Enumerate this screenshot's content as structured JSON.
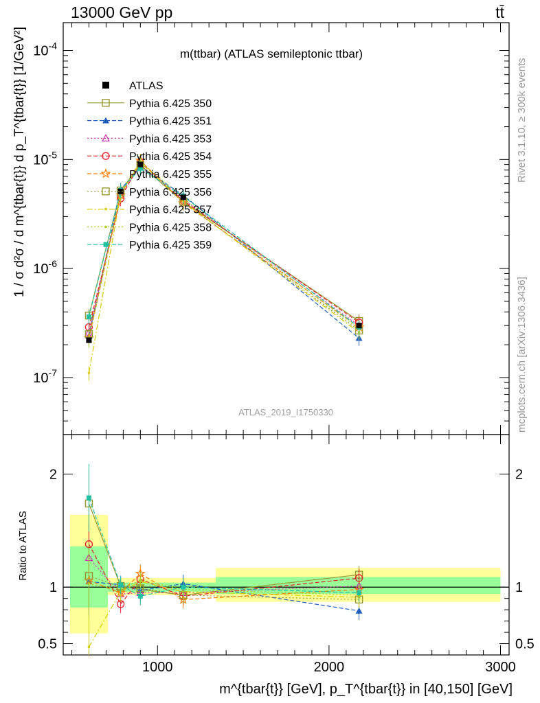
{
  "header": {
    "left": "13000 GeV pp",
    "right": "tt̄"
  },
  "side_labels": {
    "rivet": "Rivet 3.1.10, ≥ 300k events",
    "mcplots": "mcplots.cern.ch [arXiv:1306.3436]"
  },
  "colors": {
    "data": "#000000",
    "band_yellow": "#ffff99",
    "band_green": "#99ff99",
    "ratio_line": "#000000"
  },
  "chart_data": [
    {
      "type": "line",
      "panel": "main",
      "title": "m(ttbar) (ATLAS semileptonic ttbar)",
      "watermark": "ATLAS_2019_I1750330",
      "ylabel": "1 / σ d²σ / d m^{tbar{t}} d p_T^{tbar{t}} [1/GeV²]",
      "yscale": "log",
      "ylim": [
        3e-08,
        0.00018
      ],
      "xlim": [
        450,
        3050
      ],
      "ytick_labels": [
        "10^{-7}",
        "10^{-6}",
        "10^{-5}",
        "10^{-4}"
      ],
      "legend_position": "top-left",
      "x": [
        600,
        785,
        900,
        1150,
        2175
      ],
      "data_series": {
        "name": "ATLAS",
        "values": [
          2.2e-07,
          5.1e-06,
          9e-06,
          4.5e-06,
          3e-07
        ]
      },
      "series": [
        {
          "name": "Pythia 6.425 350",
          "color": "#999933",
          "values": [
            3.7e-07,
            5.2e-06,
            8.9e-06,
            4.1e-06,
            3.3e-07
          ]
        },
        {
          "name": "Pythia 6.425 351",
          "color": "#1f5fbf",
          "values": [
            2.4e-07,
            5.3e-06,
            8.6e-06,
            4.7e-06,
            2.3e-07
          ]
        },
        {
          "name": "Pythia 6.425 353",
          "color": "#cc33aa",
          "values": [
            2.6e-07,
            4.7e-06,
            8.7e-06,
            4.3e-06,
            3e-07
          ]
        },
        {
          "name": "Pythia 6.425 354",
          "color": "#e8202a",
          "values": [
            2.9e-07,
            4.4e-06,
            9.4e-06,
            4.2e-06,
            3.2e-07
          ]
        },
        {
          "name": "Pythia 6.425 355",
          "color": "#ff7f00",
          "values": [
            2.3e-07,
            4.7e-06,
            9.8e-06,
            4e-06,
            2.9e-07
          ]
        },
        {
          "name": "Pythia 6.425 356",
          "color": "#999933",
          "values": [
            2.5e-07,
            5e-06,
            8.9e-06,
            4.1e-06,
            2.7e-07
          ]
        },
        {
          "name": "Pythia 6.425 357",
          "color": "#d4cc00",
          "values": [
            1.1e-07,
            4.8e-06,
            9.4e-06,
            4.1e-06,
            2.6e-07
          ]
        },
        {
          "name": "Pythia 6.425 358",
          "color": "#aacc22",
          "values": [
            2.2e-07,
            5e-06,
            9.6e-06,
            4.4e-06,
            2.8e-07
          ]
        },
        {
          "name": "Pythia 6.425 359",
          "color": "#20c0a0",
          "values": [
            3.6e-07,
            5.2e-06,
            8.3e-06,
            4.6e-06,
            2.9e-07
          ]
        }
      ]
    },
    {
      "type": "line",
      "panel": "ratio",
      "ylabel": "Ratio to ATLAS",
      "ylim": [
        0.4,
        2.35
      ],
      "xlim": [
        450,
        3050
      ],
      "ytick_labels": [
        "0.5",
        "1",
        "2"
      ],
      "xtick_labels": [
        "1000",
        "2000",
        "3000"
      ],
      "xlabel": "m^{tbar{t}} [GeV], p_T^{tbar{t}} in [40,150] [GeV]",
      "bands": [
        {
          "x0": 490,
          "x1": 710,
          "yellow": [
            0.59,
            1.64
          ],
          "green": [
            0.82,
            1.36
          ]
        },
        {
          "x0": 710,
          "x1": 1340,
          "yellow": [
            0.93,
            1.08
          ],
          "green": [
            0.96,
            1.04
          ]
        },
        {
          "x0": 1340,
          "x1": 3000,
          "yellow": [
            0.87,
            1.17
          ],
          "green": [
            0.94,
            1.09
          ]
        }
      ],
      "x": [
        600,
        785,
        900,
        1150,
        2175
      ],
      "series": [
        {
          "name": "Pythia 6.425 350",
          "values": [
            1.74,
            1.01,
            0.98,
            0.93,
            1.11
          ]
        },
        {
          "name": "Pythia 6.425 351",
          "values": [
            1.05,
            1.02,
            0.97,
            1.03,
            0.79
          ]
        },
        {
          "name": "Pythia 6.425 353",
          "values": [
            1.26,
            0.94,
            0.95,
            0.95,
            1.01
          ]
        },
        {
          "name": "Pythia 6.425 354",
          "values": [
            1.38,
            0.85,
            1.07,
            0.92,
            1.08
          ]
        },
        {
          "name": "Pythia 6.425 355",
          "values": [
            1.06,
            0.95,
            1.12,
            0.89,
            0.98
          ]
        },
        {
          "name": "Pythia 6.425 356",
          "values": [
            1.1,
            1.0,
            0.99,
            0.93,
            0.89
          ]
        },
        {
          "name": "Pythia 6.425 357",
          "values": [
            0.47,
            0.96,
            1.05,
            0.96,
            0.91
          ]
        },
        {
          "name": "Pythia 6.425 358",
          "values": [
            1.03,
            0.98,
            1.06,
            0.98,
            0.93
          ]
        },
        {
          "name": "Pythia 6.425 359",
          "values": [
            1.79,
            1.02,
            0.92,
            1.0,
            0.95
          ]
        }
      ]
    }
  ]
}
